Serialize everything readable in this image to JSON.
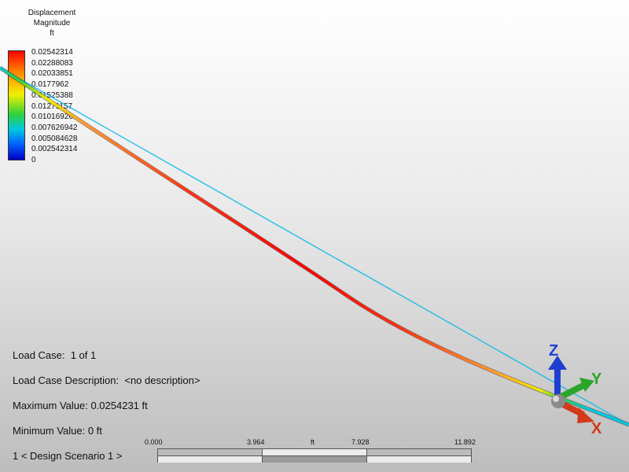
{
  "legend": {
    "title_lines": [
      "Displacement",
      "Magnitude",
      "ft"
    ],
    "values": [
      "0.02542314",
      "0.02288083",
      "0.02033851",
      "0.0177962",
      "0.01525388",
      "0.01271157",
      "0.01016926",
      "0.007626942",
      "0.005084628",
      "0.002542314",
      "0"
    ]
  },
  "info": {
    "load_case": "Load Case:  1 of 1",
    "load_case_description": "Load Case Description:  <no description>",
    "maximum_value": "Maximum Value: 0.0254231 ft",
    "minimum_value": "Minimum Value: 0 ft",
    "design_scenario": "1 < Design Scenario 1 >"
  },
  "scale": {
    "ticks": [
      "0.000",
      "3.964",
      "7.928",
      "11.892"
    ],
    "unit": "ft"
  },
  "triad": {
    "z_label": "Z",
    "y_label": "Y",
    "x_label": "X",
    "colors": {
      "z": "#1f3fd0",
      "y": "#2aa52a",
      "x": "#d23a1a"
    }
  },
  "colors": {
    "max": "#ff0000",
    "min": "#0000c0"
  }
}
